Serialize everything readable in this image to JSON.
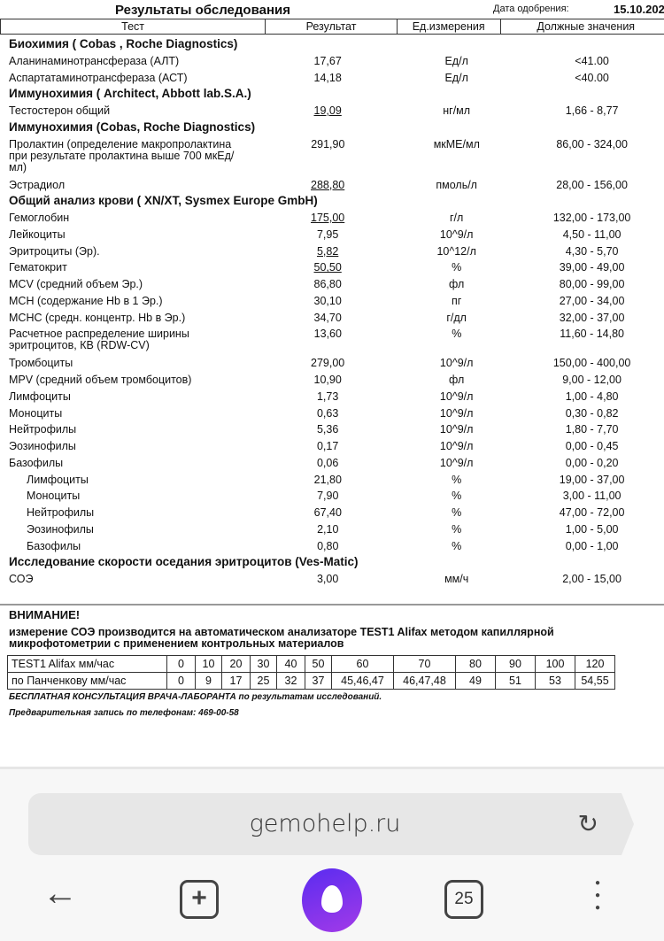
{
  "document": {
    "title": "Результаты обследования",
    "date_label": "Дата одобрения:",
    "date_value": "15.10.202",
    "columns": [
      "Тест",
      "Результат",
      "Ед.измерения",
      "Должные значения"
    ],
    "rows": [
      {
        "type": "section",
        "test": "Биохимия ( Cobas , Roche Diagnostics)"
      },
      {
        "test": "Аланинаминотрансфераза (АЛТ)",
        "result": "17,67",
        "unit": "Ед/л",
        "norm": "<41.00"
      },
      {
        "test": "Аспартатаминотрансфераза (АСТ)",
        "result": "14,18",
        "unit": "Ед/л",
        "norm": "<40.00"
      },
      {
        "type": "section",
        "test": "Иммунохимия ( Architect, Abbott lab.S.A.)"
      },
      {
        "test": "Тестостерон общий",
        "result": "19,09",
        "unit": "нг/мл",
        "norm": "1,66 - 8,77",
        "flag": true
      },
      {
        "type": "section",
        "test": "Иммунохимия (Cobas, Roche Diagnostics)"
      },
      {
        "test": "Пролактин (определение макропролактина при результате пролактина выше 700 мкЕд/мл)",
        "result": "291,90",
        "unit": "мкМЕ/мл",
        "norm": "86,00 - 324,00",
        "multi": true
      },
      {
        "test": "Эстрадиол",
        "result": "288,80",
        "unit": "пмоль/л",
        "norm": "28,00 - 156,00",
        "flag": true
      },
      {
        "type": "section",
        "test": "Общий анализ крови ( XN/XT, Sysmex  Europe GmbH)"
      },
      {
        "test": "Гемоглобин",
        "result": "175,00",
        "unit": "г/л",
        "norm": "132,00 - 173,00",
        "flag": true
      },
      {
        "test": "Лейкоциты",
        "result": "7,95",
        "unit": "10^9/л",
        "norm": "4,50 - 11,00"
      },
      {
        "test": "Эритроциты (Эр).",
        "result": "5,82",
        "unit": "10^12/л",
        "norm": "4,30 - 5,70",
        "flag": true
      },
      {
        "test": "Гематокрит",
        "result": "50,50",
        "unit": "%",
        "norm": "39,00 - 49,00",
        "flag": true
      },
      {
        "test": "MCV (средний объем Эр.)",
        "result": "86,80",
        "unit": "фл",
        "norm": "80,00 - 99,00"
      },
      {
        "test": "MCH (содержание Hb в 1 Эр.)",
        "result": "30,10",
        "unit": "пг",
        "norm": "27,00 - 34,00"
      },
      {
        "test": "MCHC (средн. концентр. Hb в Эр.)",
        "result": "34,70",
        "unit": "г/дл",
        "norm": "32,00 - 37,00"
      },
      {
        "test": "Расчетное распределение ширины эритроцитов, КВ (RDW-CV)",
        "result": "13,60",
        "unit": "%",
        "norm": "11,60 - 14,80",
        "multi": true
      },
      {
        "test": "Тромбоциты",
        "result": "279,00",
        "unit": "10^9/л",
        "norm": "150,00 - 400,00"
      },
      {
        "test": "MPV (средний объем тромбоцитов)",
        "result": "10,90",
        "unit": "фл",
        "norm": "9,00 - 12,00"
      },
      {
        "test": "Лимфоциты",
        "result": "1,73",
        "unit": "10^9/л",
        "norm": "1,00 - 4,80"
      },
      {
        "test": "Моноциты",
        "result": "0,63",
        "unit": "10^9/л",
        "norm": "0,30 - 0,82"
      },
      {
        "test": "Нейтрофилы",
        "result": "5,36",
        "unit": "10^9/л",
        "norm": "1,80 - 7,70"
      },
      {
        "test": "Эозинофилы",
        "result": "0,17",
        "unit": "10^9/л",
        "norm": "0,00 - 0,45"
      },
      {
        "test": "Базофилы",
        "result": "0,06",
        "unit": "10^9/л",
        "norm": "0,00 - 0,20"
      },
      {
        "test": "Лимфоциты",
        "result": "21,80",
        "unit": "%",
        "norm": "19,00 - 37,00",
        "indent": true
      },
      {
        "test": "Моноциты",
        "result": "7,90",
        "unit": "%",
        "norm": "3,00 - 11,00",
        "indent": true
      },
      {
        "test": "Нейтрофилы",
        "result": "67,40",
        "unit": "%",
        "norm": "47,00 - 72,00",
        "indent": true
      },
      {
        "test": "Эозинофилы",
        "result": "2,10",
        "unit": "%",
        "norm": "1,00 - 5,00",
        "indent": true
      },
      {
        "test": "Базофилы",
        "result": "0,80",
        "unit": "%",
        "norm": "0,00 - 1,00",
        "indent": true
      },
      {
        "type": "section",
        "test": "Исследование скорости оседания эритроцитов (Ves-Matic)"
      },
      {
        "test": "СОЭ",
        "result": "3,00",
        "unit": "мм/ч",
        "norm": "2,00 - 15,00"
      }
    ],
    "warning_title": "ВНИМАНИЕ!",
    "warning_text": "измерение СОЭ производится на автоматическом анализаторе TEST1 Alifax методом капиллярной микрофотометрии с применением контрольных материалов",
    "soe_table": [
      [
        "TEST1 Alifax мм/час",
        "0",
        "10",
        "20",
        "30",
        "40",
        "50",
        "60",
        "70",
        "80",
        "90",
        "100",
        "120"
      ],
      [
        "по Панченкову мм/час",
        "0",
        "9",
        "17",
        "25",
        "32",
        "37",
        "45,46,47",
        "46,47,48",
        "49",
        "51",
        "53",
        "54,55"
      ]
    ],
    "footer1": "БЕСПЛАТНАЯ КОНСУЛЬТАЦИЯ ВРАЧА-ЛАБОРАНТА по результатам исследований.",
    "footer2": "Предварительная запись по телефонам: 469-00-58"
  },
  "browser": {
    "url": "gemohelp.ru",
    "tab_count": "25",
    "accent": "#7b33ec",
    "icons": {
      "reload": "reload-icon",
      "back": "back-arrow-icon",
      "new_tab": "plus-square-icon",
      "assistant": "alice-icon",
      "tabs": "tabs-counter-icon",
      "menu": "kebab-menu-icon"
    }
  }
}
